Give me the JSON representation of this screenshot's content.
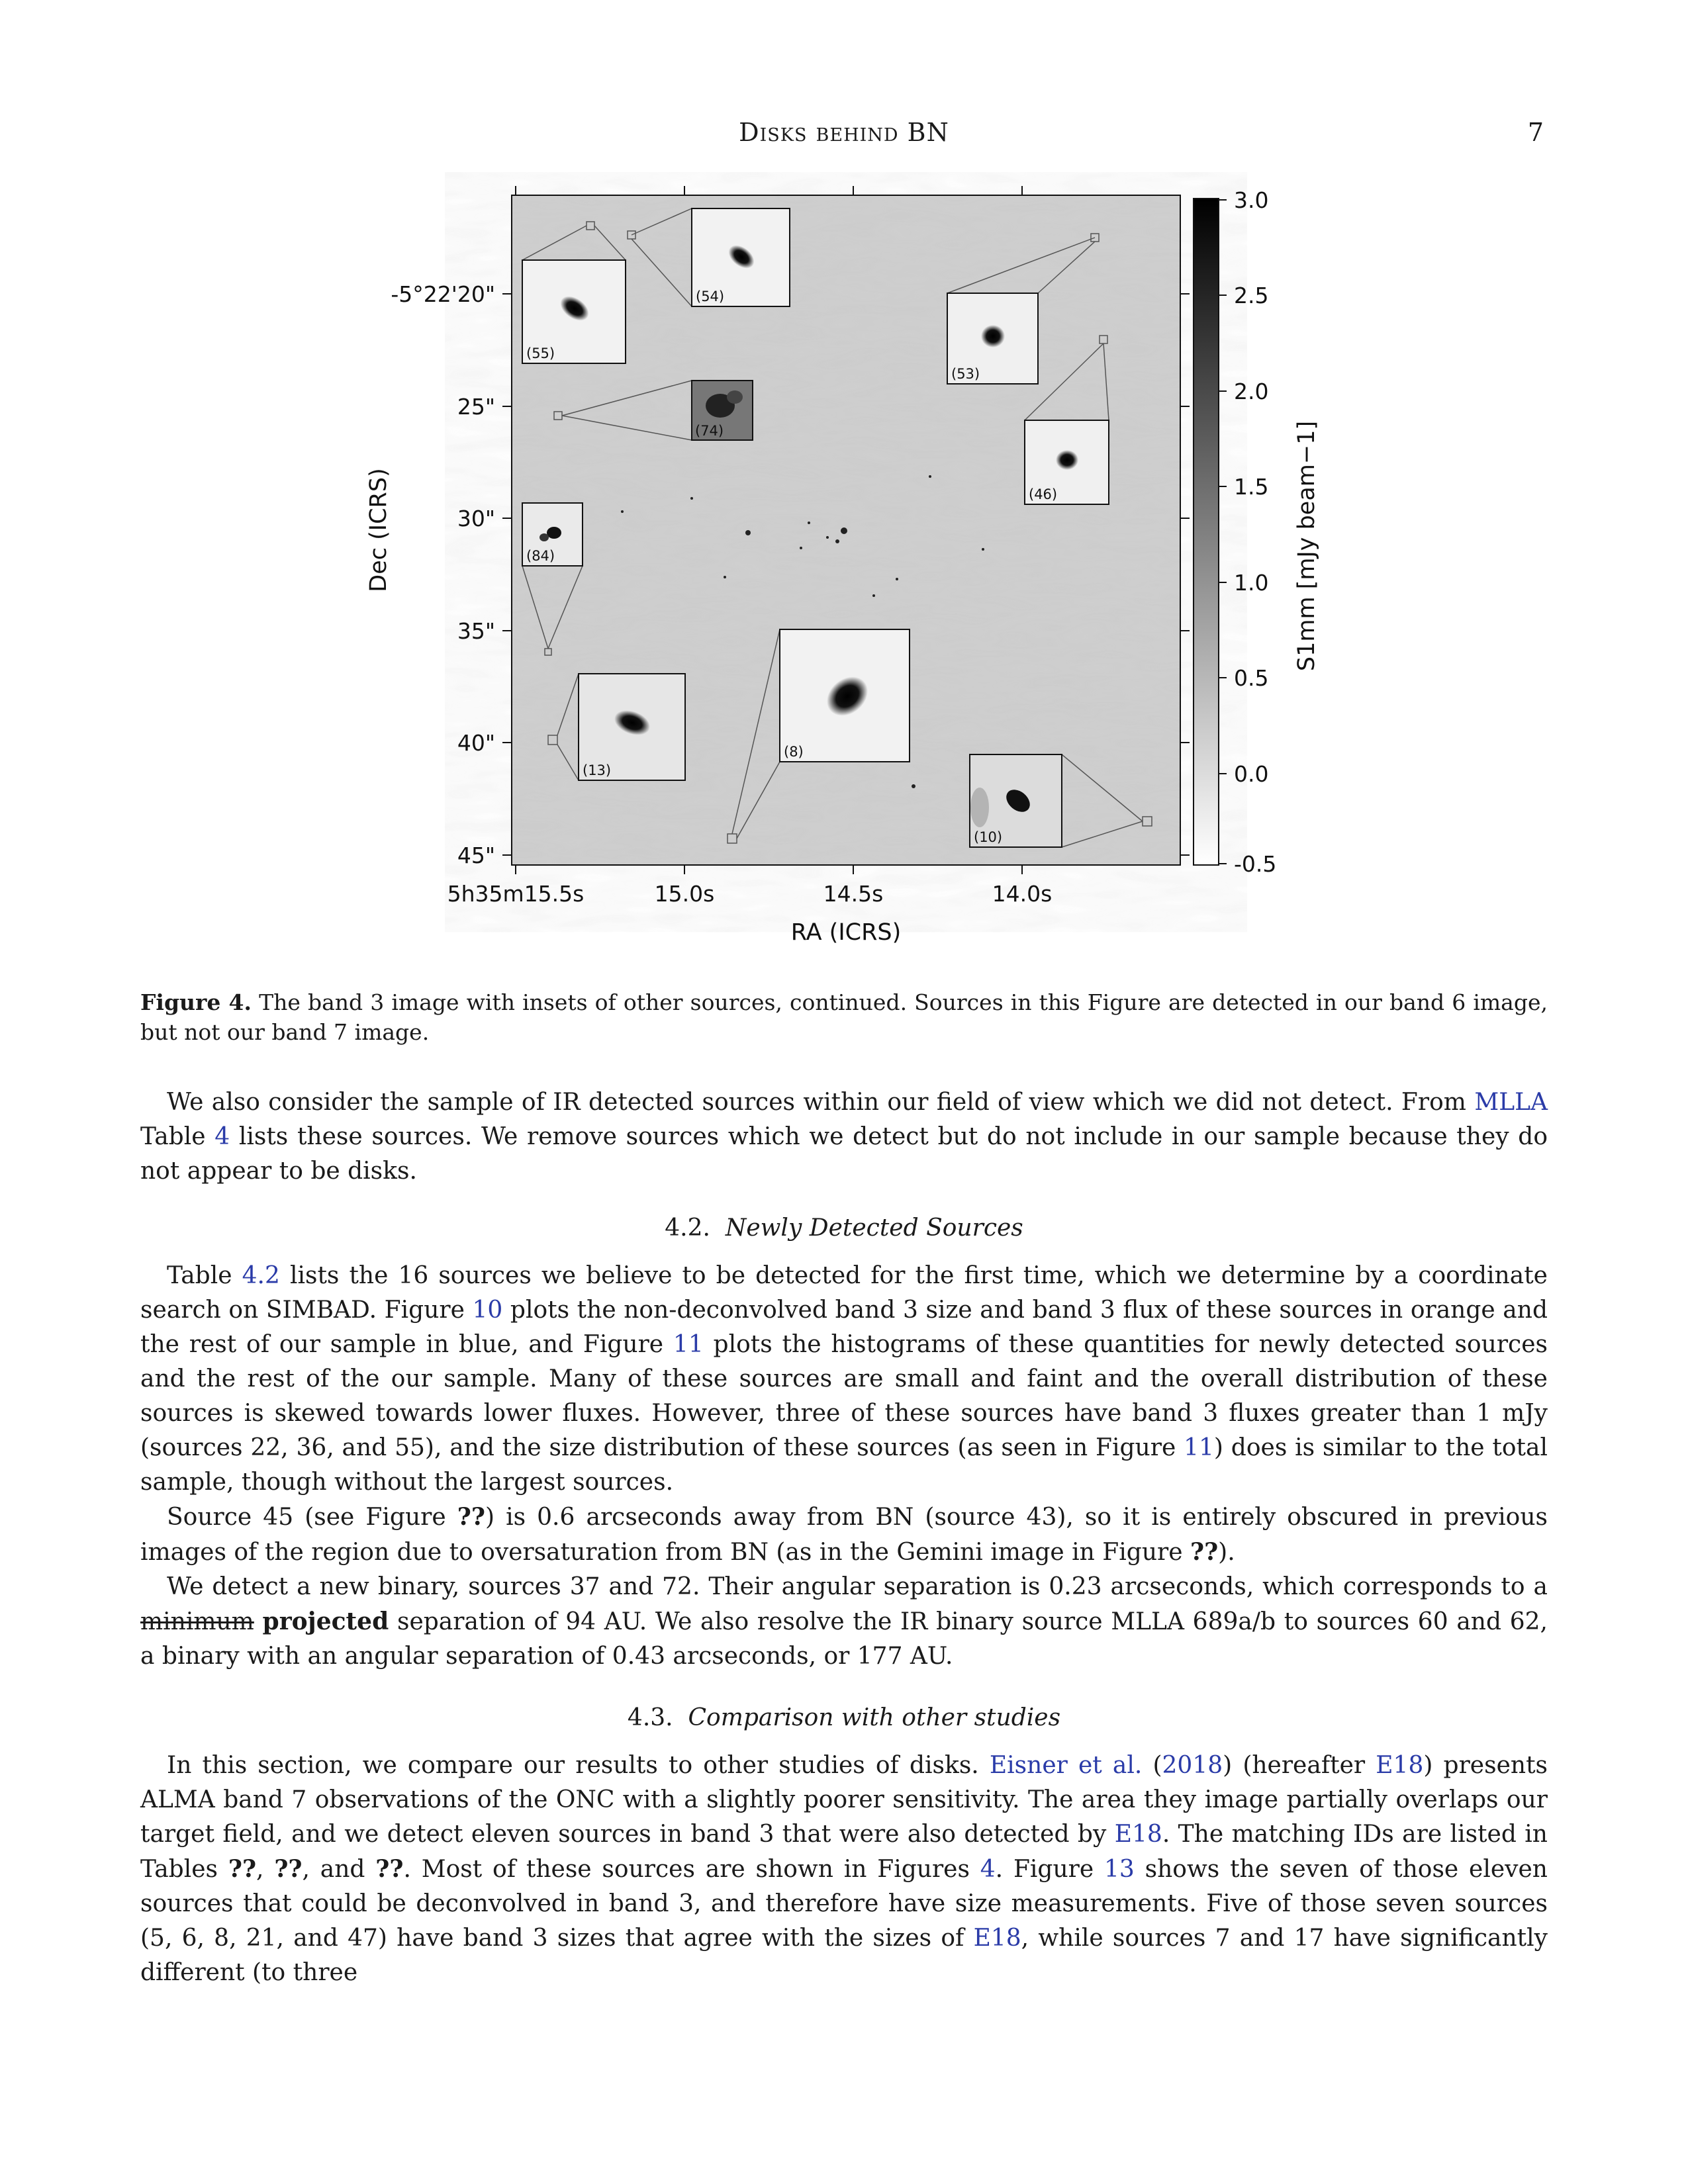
{
  "header": {
    "running_title": "Disks behind BN",
    "page_number": "7"
  },
  "figure": {
    "chart_data": {
      "type": "heatmap",
      "xlabel": "RA (ICRS)",
      "ylabel": "Dec (ICRS)",
      "x_ticks": [
        "5h35m15.5s",
        "15.0s",
        "14.5s",
        "14.0s"
      ],
      "y_ticks": [
        "-5°22'20\"",
        "25\"",
        "30\"",
        "35\"",
        "40\"",
        "45\""
      ],
      "colorbar": {
        "label": "S1mm [mJy beam−1]",
        "ticks": [
          "3.0",
          "2.5",
          "2.0",
          "1.5",
          "1.0",
          "0.5",
          "0.0",
          "-0.5"
        ],
        "range": [
          -0.5,
          3.0
        ]
      },
      "insets": [
        {
          "label": "(55)"
        },
        {
          "label": "(54)"
        },
        {
          "label": "(53)"
        },
        {
          "label": "(74)"
        },
        {
          "label": "(46)"
        },
        {
          "label": "(84)"
        },
        {
          "label": "(13)"
        },
        {
          "label": "(8)"
        },
        {
          "label": "(10)"
        }
      ]
    },
    "caption": {
      "label": "Figure 4.",
      "text": " The band 3 image with insets of other sources, continued. Sources in this Figure are detected in our band 6 image, but not our band 7 image."
    }
  },
  "para1": {
    "t1": "We also consider the sample of IR detected sources within our field of view which we did not detect. From ",
    "l1": "MLLA",
    "t2": " Table ",
    "l2": "4",
    "t3": " lists these sources. We remove sources which we detect but do not include in our sample because they do not appear to be disks."
  },
  "section42": {
    "number": "4.2.",
    "title": "Newly Detected Sources"
  },
  "para2": {
    "t1": "Table ",
    "l1": "4.2",
    "t2": " lists the 16 sources we believe to be detected for the first time, which we determine by a coordinate search on SIMBAD. Figure ",
    "l2": "10",
    "t3": " plots the non-deconvolved band 3 size and band 3 flux of these sources in orange and the rest of our sample in blue, and Figure ",
    "l3": "11",
    "t4": " plots the histograms of these quantities for newly detected sources and the rest of the our sample. Many of these sources are small and faint and the overall distribution of these sources is skewed towards lower fluxes. However, three of these sources have band 3 fluxes greater than 1 mJy (sources 22, 36, and 55), and the size distribution of these sources (as seen in Figure ",
    "l4": "11",
    "t5": ") does is similar to the total sample, though without the largest sources."
  },
  "para3": {
    "t1": "Source 45 (see Figure ",
    "b1": "??",
    "t2": ") is 0.6 arcseconds away from BN (source 43), so it is entirely obscured in previous images of the region due to oversaturation from BN (as in the Gemini image in Figure ",
    "b2": "??",
    "t3": ")."
  },
  "para4": {
    "t1": "We detect a new binary, sources 37 and 72. Their angular separation is 0.23 arcseconds, which corresponds to a ",
    "strike": "minimum",
    "bold": "projected",
    "t2": " separation of 94 AU. We also resolve the IR binary source MLLA 689a/b to sources 60 and 62, a binary with an angular separation of 0.43 arcseconds, or 177 AU."
  },
  "section43": {
    "number": "4.3.",
    "title": "Comparison with other studies"
  },
  "para5": {
    "t1": "In this section, we compare our results to other studies of disks. ",
    "l1": "Eisner et al.",
    "t2": " (",
    "l2": "2018",
    "t3": ") (hereafter ",
    "l3": "E18",
    "t4": ") presents ALMA band 7 observations of the ONC with a slightly poorer sensitivity. The area they image partially overlaps our target field, and we detect eleven sources in band 3 that were also detected by ",
    "l4": "E18",
    "t5": ". The matching IDs are listed in Tables ",
    "b1": "??",
    "t6": ", ",
    "b2": "??",
    "t7": ", and ",
    "b3": "??",
    "t8": ". Most of these sources are shown in Figures ",
    "l5": "4",
    "t9": ". Figure ",
    "l6": "13",
    "t10": " shows the seven of those eleven sources that could be deconvolved in band 3, and therefore have size measurements. Five of those seven sources (5, 6, 8, 21, and 47) have band 3 sizes that agree with the sizes of ",
    "l7": "E18",
    "t11": ", while sources 7 and 17 have significantly different (to three"
  }
}
